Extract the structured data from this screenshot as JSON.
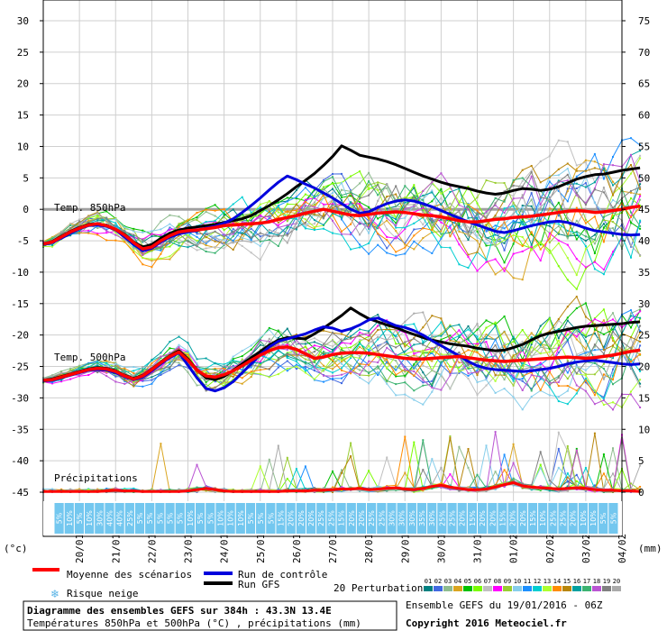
{
  "chart_data": {
    "type": "line",
    "title": "Diagramme des ensembles GEFS sur 384h : 43.3N 13.4E",
    "subtitle": "Températures 850hPa et 500hPa (°C) , précipitations (mm)",
    "run_info": "Ensemble GEFS du 19/01/2016 - 06Z",
    "copyright": "Copyright 2016 Meteociel.fr",
    "y_left_label": "(°c)",
    "y_right_label": "(mm)",
    "y_left_range": [
      -45,
      30
    ],
    "y_left_ticks": [
      "30",
      "25",
      "20",
      "15",
      "10",
      "5",
      "0",
      "-5",
      "-10",
      "-15",
      "-20",
      "-25",
      "-30",
      "-35",
      "-40",
      "-45"
    ],
    "y_right_ticks": [
      "75",
      "70",
      "65",
      "60",
      "55",
      "50",
      "45",
      "40",
      "35",
      "30",
      "25",
      "20",
      "15",
      "10",
      "5",
      "0"
    ],
    "x_labels": [
      "20/01",
      "21/01",
      "22/01",
      "23/01",
      "24/01",
      "25/01",
      "26/01",
      "27/01",
      "28/01",
      "29/01",
      "30/01",
      "31/01",
      "01/02",
      "02/02",
      "03/02",
      "04/02"
    ],
    "x_range_hours": [
      0,
      384
    ],
    "section_labels": {
      "t850": "Temp. 850hPa",
      "t500": "Temp. 500hPa",
      "precip": "Précipitations"
    },
    "snow_risk": [
      "5%",
      "10%",
      "5%",
      "10%",
      "30%",
      "40%",
      "40%",
      "25%",
      "5%",
      "5%",
      "5%",
      "5%",
      "5%",
      "10%",
      "5%",
      "5%",
      "10%",
      "10%",
      "10%",
      "5%",
      "5%",
      "5%",
      "15%",
      "20%",
      "20%",
      "20%",
      "25%",
      "25%",
      "15%",
      "20%",
      "20%",
      "25%",
      "25%",
      "30%",
      "30%",
      "30%",
      "35%",
      "30%",
      "25%",
      "25%",
      "20%",
      "15%",
      "20%",
      "20%",
      "15%",
      "20%",
      "20%",
      "15%",
      "10%",
      "25%",
      "25%",
      "20%",
      "10%",
      "10%",
      "5%",
      "5%"
    ],
    "legend": {
      "mean": "Moyenne des scénarios",
      "control": "Run de contrôle",
      "gfs": "Run GFS",
      "snow": "Risque neige",
      "perturbations": "20 Perturbations",
      "perturbation_ids": [
        "01",
        "02",
        "03",
        "04",
        "05",
        "06",
        "07",
        "08",
        "09",
        "10",
        "11",
        "12",
        "13",
        "14",
        "15",
        "16",
        "17",
        "18",
        "19",
        "20"
      ]
    },
    "colors": {
      "mean": "#ff0000",
      "control": "#0000dd",
      "gfs": "#000000",
      "zero_line": "#a0a0a0",
      "snow_band": "#73c7ef",
      "perturbations": [
        "#008080",
        "#4169e1",
        "#8fbc8f",
        "#daa520",
        "#00c000",
        "#7cfc00",
        "#c0c0c0",
        "#ff00ff",
        "#9acd32",
        "#87ceeb",
        "#1e90ff",
        "#00ced1",
        "#adff2f",
        "#ff8c00",
        "#b8860b",
        "#00a0a0",
        "#3cb371",
        "#ba55d3",
        "#808080",
        "#aaaaaa"
      ]
    },
    "series": [
      {
        "name": "T850 Moyenne",
        "x_step_hours": 6,
        "values": [
          -5.5,
          -5.2,
          -4.4,
          -3.6,
          -3.0,
          -2.5,
          -2.3,
          -2.6,
          -3.2,
          -4.1,
          -5.3,
          -6.3,
          -6.0,
          -5.0,
          -4.2,
          -3.6,
          -3.4,
          -3.3,
          -3.1,
          -2.9,
          -2.6,
          -2.5,
          -2.4,
          -2.3,
          -2.2,
          -2.0,
          -1.6,
          -1.3,
          -1.0,
          -0.6,
          -0.3,
          0.0,
          -0.3,
          -0.6,
          -0.9,
          -1.0,
          -0.8,
          -0.6,
          -0.5,
          -0.4,
          -0.5,
          -0.7,
          -0.9,
          -1.0,
          -1.2,
          -1.5,
          -1.8,
          -2.0,
          -2.0,
          -1.8,
          -1.6,
          -1.5,
          -1.3,
          -1.2,
          -1.1,
          -0.9,
          -0.7,
          -0.5,
          -0.3,
          -0.2,
          -0.3,
          -0.5,
          -0.4,
          -0.2,
          0.0,
          0.3,
          0.5
        ]
      },
      {
        "name": "T850 Contrôle",
        "x_step_hours": 6,
        "values": [
          -5.6,
          -5.3,
          -4.6,
          -3.8,
          -3.1,
          -2.6,
          -2.5,
          -2.7,
          -3.3,
          -4.4,
          -5.6,
          -6.6,
          -6.2,
          -5.2,
          -4.4,
          -3.9,
          -3.6,
          -3.4,
          -3.0,
          -2.7,
          -2.2,
          -1.5,
          -0.5,
          0.6,
          1.8,
          3.1,
          4.3,
          5.3,
          4.7,
          4.0,
          3.4,
          2.6,
          1.8,
          0.9,
          0.0,
          -0.6,
          -0.4,
          0.3,
          0.9,
          1.3,
          1.5,
          1.3,
          0.9,
          0.4,
          -0.2,
          -0.8,
          -1.4,
          -2.0,
          -2.5,
          -3.0,
          -3.5,
          -3.7,
          -3.4,
          -3.0,
          -2.6,
          -2.3,
          -2.0,
          -1.9,
          -2.1,
          -2.5,
          -3.0,
          -3.4,
          -3.6,
          -3.8,
          -4.0,
          -4.1,
          -4.0
        ]
      },
      {
        "name": "T850 GFS",
        "x_step_hours": 6,
        "values": [
          -5.5,
          -5.1,
          -4.3,
          -3.5,
          -2.9,
          -2.4,
          -2.3,
          -2.6,
          -3.2,
          -4.0,
          -5.2,
          -6.0,
          -5.6,
          -4.6,
          -3.8,
          -3.3,
          -3.0,
          -2.8,
          -2.6,
          -2.4,
          -2.1,
          -1.8,
          -1.5,
          -1.0,
          -0.2,
          0.6,
          1.5,
          2.5,
          3.6,
          4.6,
          5.7,
          7.0,
          8.4,
          10.1,
          9.4,
          8.6,
          8.3,
          8.0,
          7.6,
          7.1,
          6.5,
          5.9,
          5.3,
          4.8,
          4.3,
          3.9,
          3.6,
          3.3,
          2.9,
          2.6,
          2.4,
          2.6,
          3.0,
          3.3,
          3.2,
          3.0,
          3.2,
          3.6,
          4.2,
          4.8,
          5.2,
          5.5,
          5.6,
          5.9,
          6.2,
          6.4,
          6.6
        ]
      },
      {
        "name": "T500 Moyenne",
        "x_step_hours": 6,
        "values": [
          -27.2,
          -27.1,
          -26.7,
          -26.3,
          -25.9,
          -25.5,
          -25.3,
          -25.4,
          -25.8,
          -26.5,
          -27.0,
          -26.5,
          -25.5,
          -24.4,
          -23.4,
          -22.7,
          -24.0,
          -25.6,
          -26.5,
          -26.7,
          -26.3,
          -25.7,
          -24.9,
          -24.0,
          -23.2,
          -22.5,
          -22.0,
          -21.9,
          -22.3,
          -23.0,
          -23.7,
          -23.5,
          -23.1,
          -22.9,
          -22.8,
          -22.8,
          -22.9,
          -23.1,
          -23.3,
          -23.5,
          -23.7,
          -23.8,
          -23.8,
          -23.7,
          -23.6,
          -23.5,
          -23.4,
          -23.6,
          -23.8,
          -24.0,
          -24.1,
          -24.2,
          -24.1,
          -24.0,
          -23.9,
          -23.8,
          -23.7,
          -23.6,
          -23.5,
          -23.6,
          -23.7,
          -23.6,
          -23.4,
          -23.2,
          -22.9,
          -22.6,
          -22.4
        ]
      },
      {
        "name": "T500 Contrôle",
        "x_step_hours": 6,
        "values": [
          -27.3,
          -27.2,
          -26.8,
          -26.4,
          -26.0,
          -25.6,
          -25.5,
          -25.6,
          -26.0,
          -26.6,
          -27.1,
          -26.7,
          -25.7,
          -24.6,
          -23.6,
          -22.8,
          -24.8,
          -26.8,
          -28.5,
          -28.9,
          -28.4,
          -27.4,
          -26.0,
          -24.6,
          -23.1,
          -21.9,
          -21.0,
          -20.6,
          -20.2,
          -19.8,
          -19.2,
          -18.7,
          -18.9,
          -19.4,
          -19.0,
          -18.4,
          -17.6,
          -17.3,
          -17.9,
          -18.5,
          -18.8,
          -19.3,
          -20.0,
          -20.9,
          -21.7,
          -22.5,
          -23.3,
          -24.2,
          -24.9,
          -25.3,
          -25.5,
          -25.6,
          -25.7,
          -25.8,
          -25.7,
          -25.5,
          -25.3,
          -25.0,
          -24.6,
          -24.3,
          -24.1,
          -24.0,
          -24.2,
          -24.4,
          -24.6,
          -24.7,
          -24.6
        ]
      },
      {
        "name": "T500 GFS",
        "x_step_hours": 6,
        "values": [
          -27.2,
          -27.0,
          -26.6,
          -26.2,
          -25.8,
          -25.4,
          -25.2,
          -25.3,
          -25.7,
          -26.4,
          -26.9,
          -26.4,
          -25.4,
          -24.3,
          -23.3,
          -22.5,
          -23.8,
          -25.5,
          -26.8,
          -27.1,
          -26.6,
          -25.6,
          -24.6,
          -23.6,
          -22.6,
          -21.6,
          -20.8,
          -20.4,
          -20.5,
          -20.6,
          -19.8,
          -18.9,
          -17.9,
          -16.9,
          -15.7,
          -16.6,
          -17.4,
          -17.9,
          -18.4,
          -18.8,
          -19.4,
          -19.9,
          -20.4,
          -20.8,
          -21.1,
          -21.4,
          -21.6,
          -21.8,
          -22.1,
          -22.3,
          -22.5,
          -22.4,
          -22.0,
          -21.5,
          -20.8,
          -20.1,
          -19.7,
          -19.4,
          -19.1,
          -18.8,
          -18.6,
          -18.5,
          -18.4,
          -18.3,
          -18.2,
          -18.0,
          -17.9
        ]
      },
      {
        "name": "Précip. Moyenne (mm)",
        "x_step_hours": 6,
        "values": [
          0.1,
          0.1,
          0.1,
          0.1,
          0.1,
          0.1,
          0.1,
          0.2,
          0.3,
          0.2,
          0.2,
          0.1,
          0.1,
          0.1,
          0.1,
          0.1,
          0.2,
          0.4,
          0.6,
          0.4,
          0.2,
          0.1,
          0.1,
          0.1,
          0.1,
          0.1,
          0.1,
          0.2,
          0.2,
          0.2,
          0.3,
          0.3,
          0.4,
          0.5,
          0.5,
          0.6,
          0.4,
          0.5,
          0.6,
          0.7,
          0.5,
          0.4,
          0.6,
          0.9,
          1.1,
          0.8,
          0.6,
          0.4,
          0.4,
          0.5,
          0.8,
          1.2,
          1.5,
          1.0,
          0.8,
          0.7,
          0.6,
          0.5,
          0.6,
          0.7,
          0.6,
          0.4,
          0.3,
          0.3,
          0.2,
          0.2,
          0.1
        ]
      }
    ]
  }
}
